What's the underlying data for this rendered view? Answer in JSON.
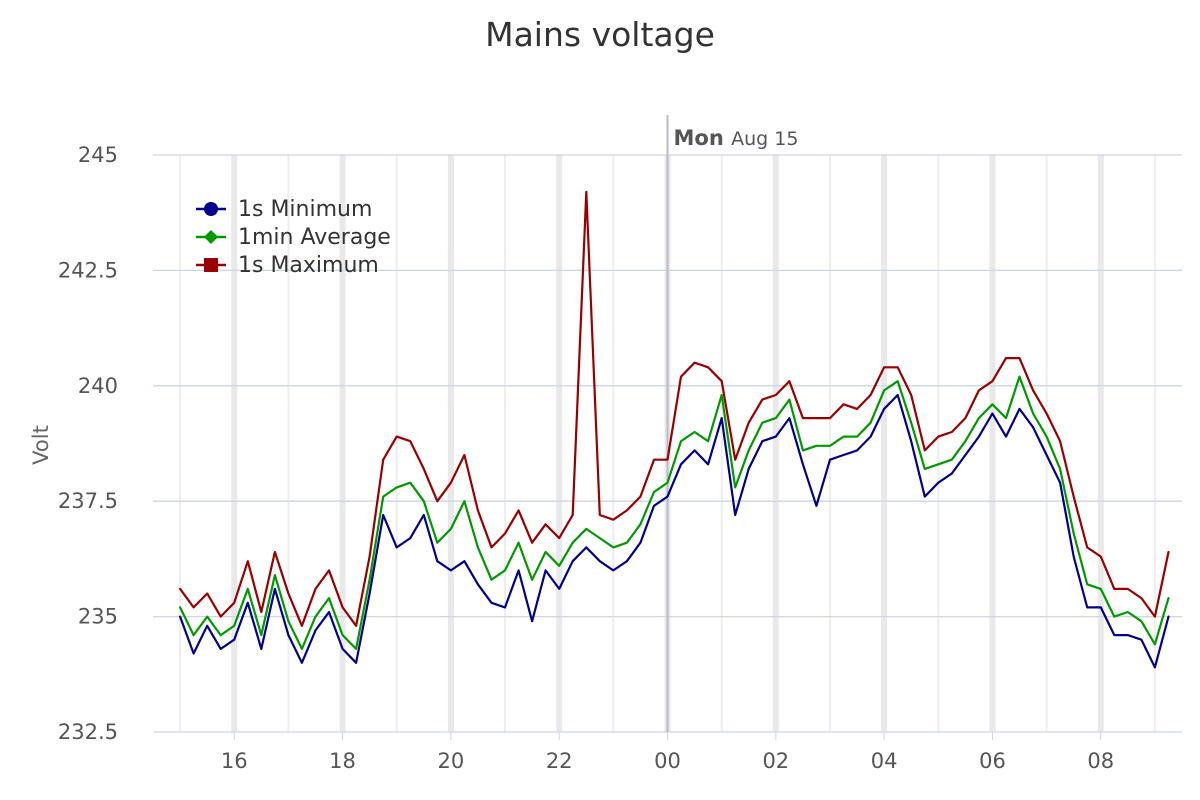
{
  "chart_data": {
    "type": "line",
    "title": "Mains voltage",
    "xlabel": "",
    "ylabel": "Volt",
    "ylim": [
      232.5,
      245
    ],
    "y_ticks": [
      232.5,
      235,
      237.5,
      240,
      242.5,
      245
    ],
    "y_tick_labels": [
      "232.5",
      "235",
      "237.5",
      "240",
      "242.5",
      "245"
    ],
    "x_unit": "hour",
    "x_range": [
      14.5,
      33.5
    ],
    "x_ticks": [
      16,
      18,
      20,
      22,
      24,
      26,
      28,
      30,
      32
    ],
    "x_tick_labels": [
      "16",
      "18",
      "20",
      "22",
      "00",
      "02",
      "04",
      "06",
      "08"
    ],
    "day_boundary": {
      "x": 24,
      "weekday": "Mon",
      "date": "Aug 15"
    },
    "grid": true,
    "legend_position": "top-left",
    "series": [
      {
        "name": "1s Minimum",
        "color": "#00008B",
        "marker": "circle",
        "x": [
          15.0,
          15.25,
          15.5,
          15.75,
          16.0,
          16.25,
          16.5,
          16.75,
          17.0,
          17.25,
          17.5,
          17.75,
          18.0,
          18.25,
          18.5,
          18.75,
          19.0,
          19.25,
          19.5,
          19.75,
          20.0,
          20.25,
          20.5,
          20.75,
          21.0,
          21.25,
          21.5,
          21.75,
          22.0,
          22.25,
          22.5,
          22.75,
          23.0,
          23.25,
          23.5,
          23.75,
          24.0,
          24.25,
          24.5,
          24.75,
          25.0,
          25.25,
          25.5,
          25.75,
          26.0,
          26.25,
          26.5,
          26.75,
          27.0,
          27.25,
          27.5,
          27.75,
          28.0,
          28.25,
          28.5,
          28.75,
          29.0,
          29.25,
          29.5,
          29.75,
          30.0,
          30.25,
          30.5,
          30.75,
          31.0,
          31.25,
          31.5,
          31.75,
          32.0,
          32.25,
          32.5,
          32.75,
          33.0,
          33.25
        ],
        "values": [
          235.0,
          234.2,
          234.8,
          234.3,
          234.5,
          235.3,
          234.3,
          235.6,
          234.6,
          234.0,
          234.7,
          235.1,
          234.3,
          234.0,
          235.5,
          237.2,
          236.5,
          236.7,
          237.2,
          236.2,
          236.0,
          236.2,
          235.7,
          235.3,
          235.2,
          236.0,
          234.9,
          236.0,
          235.6,
          236.2,
          236.5,
          236.2,
          236.0,
          236.2,
          236.6,
          237.4,
          237.6,
          238.3,
          238.6,
          238.3,
          239.3,
          237.2,
          238.2,
          238.8,
          238.9,
          239.3,
          238.3,
          237.4,
          238.4,
          238.5,
          238.6,
          238.9,
          239.5,
          239.8,
          238.8,
          237.6,
          237.9,
          238.1,
          238.5,
          238.9,
          239.4,
          238.9,
          239.5,
          239.1,
          238.5,
          237.9,
          236.3,
          235.2,
          235.2,
          234.6,
          234.6,
          234.5,
          233.9,
          235.0
        ]
      },
      {
        "name": "1min Average",
        "color": "#009900",
        "marker": "diamond",
        "x": [
          15.0,
          15.25,
          15.5,
          15.75,
          16.0,
          16.25,
          16.5,
          16.75,
          17.0,
          17.25,
          17.5,
          17.75,
          18.0,
          18.25,
          18.5,
          18.75,
          19.0,
          19.25,
          19.5,
          19.75,
          20.0,
          20.25,
          20.5,
          20.75,
          21.0,
          21.25,
          21.5,
          21.75,
          22.0,
          22.25,
          22.5,
          22.75,
          23.0,
          23.25,
          23.5,
          23.75,
          24.0,
          24.25,
          24.5,
          24.75,
          25.0,
          25.25,
          25.5,
          25.75,
          26.0,
          26.25,
          26.5,
          26.75,
          27.0,
          27.25,
          27.5,
          27.75,
          28.0,
          28.25,
          28.5,
          28.75,
          29.0,
          29.25,
          29.5,
          29.75,
          30.0,
          30.25,
          30.5,
          30.75,
          31.0,
          31.25,
          31.5,
          31.75,
          32.0,
          32.25,
          32.5,
          32.75,
          33.0,
          33.25
        ],
        "values": [
          235.2,
          234.6,
          235.0,
          234.6,
          234.8,
          235.6,
          234.6,
          235.9,
          234.9,
          234.3,
          235.0,
          235.4,
          234.6,
          234.3,
          235.8,
          237.6,
          237.8,
          237.9,
          237.5,
          236.6,
          236.9,
          237.5,
          236.5,
          235.8,
          236.0,
          236.6,
          235.8,
          236.4,
          236.1,
          236.6,
          236.9,
          236.7,
          236.5,
          236.6,
          237.0,
          237.7,
          237.9,
          238.8,
          239.0,
          238.8,
          239.8,
          237.8,
          238.6,
          239.2,
          239.3,
          239.7,
          238.6,
          238.7,
          238.7,
          238.9,
          238.9,
          239.2,
          239.9,
          240.1,
          239.2,
          238.2,
          238.3,
          238.4,
          238.8,
          239.3,
          239.6,
          239.3,
          240.2,
          239.4,
          238.9,
          238.2,
          236.8,
          235.7,
          235.6,
          235.0,
          235.1,
          234.9,
          234.4,
          235.4
        ]
      },
      {
        "name": "1s Maximum",
        "color": "#990000",
        "marker": "square",
        "x": [
          15.0,
          15.25,
          15.5,
          15.75,
          16.0,
          16.25,
          16.5,
          16.75,
          17.0,
          17.25,
          17.5,
          17.75,
          18.0,
          18.25,
          18.5,
          18.75,
          19.0,
          19.25,
          19.5,
          19.75,
          20.0,
          20.25,
          20.5,
          20.75,
          21.0,
          21.25,
          21.5,
          21.75,
          22.0,
          22.25,
          22.5,
          22.75,
          23.0,
          23.25,
          23.5,
          23.75,
          24.0,
          24.25,
          24.5,
          24.75,
          25.0,
          25.25,
          25.5,
          25.75,
          26.0,
          26.25,
          26.5,
          26.75,
          27.0,
          27.25,
          27.5,
          27.75,
          28.0,
          28.25,
          28.5,
          28.75,
          29.0,
          29.25,
          29.5,
          29.75,
          30.0,
          30.25,
          30.5,
          30.75,
          31.0,
          31.25,
          31.5,
          31.75,
          32.0,
          32.25,
          32.5,
          32.75,
          33.0,
          33.25
        ],
        "values": [
          235.6,
          235.2,
          235.5,
          235.0,
          235.3,
          236.2,
          235.1,
          236.4,
          235.5,
          234.8,
          235.6,
          236.0,
          235.2,
          234.8,
          236.3,
          238.4,
          238.9,
          238.8,
          238.2,
          237.5,
          237.9,
          238.5,
          237.3,
          236.5,
          236.8,
          237.3,
          236.6,
          237.0,
          236.7,
          237.2,
          244.2,
          237.2,
          237.1,
          237.3,
          237.6,
          238.4,
          238.4,
          240.2,
          240.5,
          240.4,
          240.1,
          238.4,
          239.2,
          239.7,
          239.8,
          240.1,
          239.3,
          239.3,
          239.3,
          239.6,
          239.5,
          239.8,
          240.4,
          240.4,
          239.8,
          238.6,
          238.9,
          239.0,
          239.3,
          239.9,
          240.1,
          240.6,
          240.6,
          239.9,
          239.4,
          238.8,
          237.6,
          236.5,
          236.3,
          235.6,
          235.6,
          235.4,
          235.0,
          236.4
        ]
      }
    ]
  }
}
